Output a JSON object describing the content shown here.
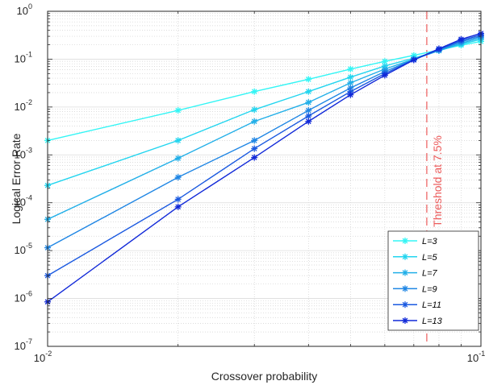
{
  "chart_data": {
    "type": "line",
    "xlabel": "Crossover probability",
    "ylabel": "Logical Error Rate",
    "x_scale": "log",
    "y_scale": "log",
    "xlim": [
      0.01,
      0.1
    ],
    "ylim": [
      1e-07,
      1
    ],
    "grid": true,
    "legend_position": "bottom-right",
    "x_ticks": [
      {
        "value": 0.01,
        "mantissa": "10",
        "exp": "-2"
      },
      {
        "value": 0.1,
        "mantissa": "10",
        "exp": "-1"
      }
    ],
    "y_ticks": [
      {
        "value": 1,
        "mantissa": "10",
        "exp": "0"
      },
      {
        "value": 0.1,
        "mantissa": "10",
        "exp": "-1"
      },
      {
        "value": 0.01,
        "mantissa": "10",
        "exp": "-2"
      },
      {
        "value": 0.001,
        "mantissa": "10",
        "exp": "-3"
      },
      {
        "value": 0.0001,
        "mantissa": "10",
        "exp": "-4"
      },
      {
        "value": 1e-05,
        "mantissa": "10",
        "exp": "-5"
      },
      {
        "value": 1e-06,
        "mantissa": "10",
        "exp": "-6"
      },
      {
        "value": 1e-07,
        "mantissa": "10",
        "exp": "-7"
      }
    ],
    "x": [
      0.01,
      0.02,
      0.03,
      0.04,
      0.05,
      0.06,
      0.07,
      0.08,
      0.09,
      0.1
    ],
    "series": [
      {
        "name": "L=3",
        "color": "#33f5f5",
        "values": [
          0.002,
          0.0085,
          0.021,
          0.038,
          0.062,
          0.09,
          0.12,
          0.155,
          0.195,
          0.235
        ]
      },
      {
        "name": "L=5",
        "color": "#22d5ef",
        "values": [
          0.00023,
          0.002,
          0.0088,
          0.021,
          0.042,
          0.072,
          0.105,
          0.15,
          0.205,
          0.26
        ]
      },
      {
        "name": "L=7",
        "color": "#22afe8",
        "values": [
          4.5e-05,
          0.00085,
          0.005,
          0.0125,
          0.032,
          0.062,
          0.1,
          0.15,
          0.215,
          0.28
        ]
      },
      {
        "name": "L=9",
        "color": "#1f86e4",
        "values": [
          1.15e-05,
          0.00034,
          0.002,
          0.0085,
          0.025,
          0.055,
          0.098,
          0.155,
          0.23,
          0.3
        ]
      },
      {
        "name": "L=11",
        "color": "#1a59e0",
        "values": [
          3e-06,
          0.000118,
          0.00135,
          0.0065,
          0.021,
          0.05,
          0.097,
          0.16,
          0.245,
          0.32
        ]
      },
      {
        "name": "L=13",
        "color": "#1028d8",
        "values": [
          8.5e-07,
          8.2e-05,
          0.00088,
          0.005,
          0.018,
          0.046,
          0.096,
          0.165,
          0.26,
          0.345
        ]
      }
    ],
    "threshold": {
      "x": 0.075,
      "label": "Threshold at 7.5%",
      "color": "#ec5b5b"
    }
  }
}
